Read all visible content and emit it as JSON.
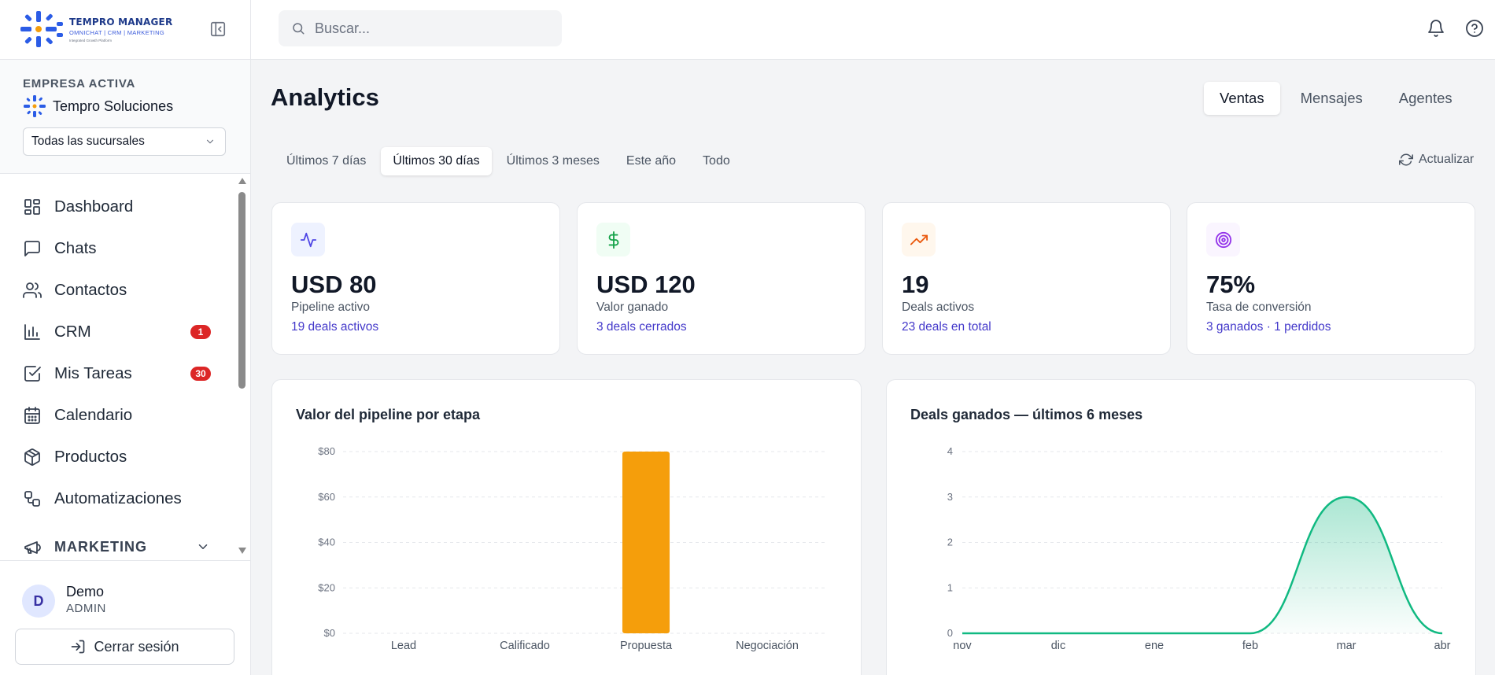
{
  "brand": {
    "title": "TEMPRO MANAGER",
    "subtitle": "OMNICHAT | CRM | MARKETING",
    "tagline": "Integrated Growth Platform"
  },
  "company": {
    "label": "EMPRESA ACTIVA",
    "name": "Tempro Soluciones",
    "branch_select": "Todas las sucursales"
  },
  "nav": {
    "items": [
      {
        "label": "Dashboard",
        "icon": "dashboard-icon"
      },
      {
        "label": "Chats",
        "icon": "chat-icon"
      },
      {
        "label": "Contactos",
        "icon": "users-icon"
      },
      {
        "label": "CRM",
        "icon": "bar-chart-icon",
        "badge": "1"
      },
      {
        "label": "Mis Tareas",
        "icon": "checkbox-icon",
        "badge": "30"
      },
      {
        "label": "Calendario",
        "icon": "calendar-icon"
      },
      {
        "label": "Productos",
        "icon": "package-icon"
      },
      {
        "label": "Automatizaciones",
        "icon": "workflow-icon"
      }
    ],
    "section": {
      "label": "MARKETING",
      "icon": "megaphone-icon"
    }
  },
  "user": {
    "initial": "D",
    "name": "Demo",
    "role": "ADMIN",
    "logout_label": "Cerrar sesión"
  },
  "search": {
    "placeholder": "Buscar..."
  },
  "page": {
    "title": "Analytics"
  },
  "view_tabs": [
    {
      "label": "Ventas",
      "active": true
    },
    {
      "label": "Mensajes",
      "active": false
    },
    {
      "label": "Agentes",
      "active": false
    }
  ],
  "range_tabs": [
    {
      "label": "Últimos 7 días",
      "active": false
    },
    {
      "label": "Últimos 30 días",
      "active": true
    },
    {
      "label": "Últimos 3 meses",
      "active": false
    },
    {
      "label": "Este año",
      "active": false
    },
    {
      "label": "Todo",
      "active": false
    }
  ],
  "refresh_label": "Actualizar",
  "kpis": [
    {
      "value": "USD 80",
      "label": "Pipeline activo",
      "sub": "19 deals activos",
      "icon": "activity-icon",
      "color": "#4f46e5",
      "bg": "#eef2ff"
    },
    {
      "value": "USD 120",
      "label": "Valor ganado",
      "sub": "3 deals cerrados",
      "icon": "dollar-icon",
      "color": "#16a34a",
      "bg": "#f0fdf4"
    },
    {
      "value": "19",
      "label": "Deals activos",
      "sub": "23 deals en total",
      "icon": "trending-up-icon",
      "color": "#ea580c",
      "bg": "#fff7ed"
    },
    {
      "value": "75%",
      "label": "Tasa de conversión",
      "sub": "3 ganados · 1 perdidos",
      "icon": "target-icon",
      "color": "#9333ea",
      "bg": "#faf5ff"
    }
  ],
  "colors": {
    "bar": "#f59e0b",
    "line": "#10b981",
    "accent": "#4338ca",
    "badge": "#dc2626"
  },
  "chart_data": [
    {
      "type": "bar",
      "title": "Valor del pipeline por etapa",
      "categories": [
        "Lead",
        "Calificado",
        "Propuesta",
        "Negociación"
      ],
      "values": [
        0,
        0,
        80,
        0
      ],
      "ylim": [
        0,
        80
      ],
      "yticks": [
        0,
        20,
        40,
        60,
        80
      ],
      "ytick_labels": [
        "$0",
        "$20",
        "$40",
        "$60",
        "$80"
      ],
      "grid": true
    },
    {
      "type": "area",
      "title": "Deals ganados — últimos 6 meses",
      "categories": [
        "nov",
        "dic",
        "ene",
        "feb",
        "mar",
        "abr"
      ],
      "values": [
        0,
        0,
        0,
        0,
        3,
        0
      ],
      "ylim": [
        0,
        4
      ],
      "yticks": [
        0,
        1,
        2,
        3,
        4
      ],
      "ytick_labels": [
        "0",
        "1",
        "2",
        "3",
        "4"
      ],
      "grid": true
    }
  ]
}
